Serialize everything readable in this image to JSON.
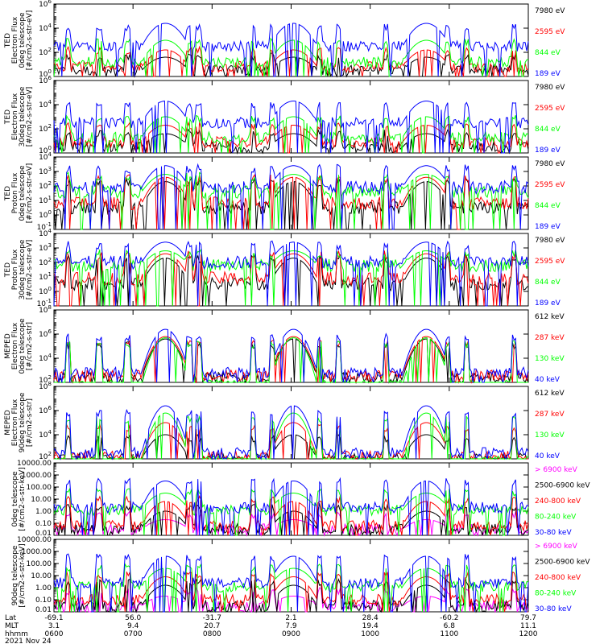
{
  "figure": {
    "date": "2021 Nov 24",
    "footer_labels": [
      "Lat",
      "MLT",
      "hhmm"
    ],
    "footer_columns": [
      {
        "lat": "-69.1",
        "mlt": "3.1",
        "hhmm": "0600"
      },
      {
        "lat": "56.0",
        "mlt": "9.4",
        "hhmm": "0700"
      },
      {
        "lat": "-31.7",
        "mlt": "20.7",
        "hhmm": "0800"
      },
      {
        "lat": "2.1",
        "mlt": "7.9",
        "hhmm": "0900"
      },
      {
        "lat": "28.4",
        "mlt": "19.4",
        "hhmm": "1000"
      },
      {
        "lat": "-60.2",
        "mlt": "6.8",
        "hhmm": "1100"
      },
      {
        "lat": "79.7",
        "mlt": "11.1",
        "hhmm": "1200"
      }
    ]
  },
  "colors": {
    "blue": "#0000ff",
    "red": "#ff0000",
    "green": "#00ff00",
    "black": "#000000",
    "magenta": "#ff00ff"
  },
  "chart_data": [
    {
      "type": "line",
      "ylabel_lines": [
        "TED",
        "Electron Flux",
        "0deg telescope",
        "[#/cm2-s-str-eV]"
      ],
      "yscale": "log",
      "yticks": [
        "10^0",
        "10^2",
        "10^4",
        "10^6"
      ],
      "x_range": [
        "0600",
        "1200"
      ],
      "series": [
        {
          "name": "7980 eV",
          "color": "#000000",
          "baseline": 0.5,
          "peak": 1.6
        },
        {
          "name": "2595 eV",
          "color": "#ff0000",
          "baseline": 0.8,
          "peak": 2.2
        },
        {
          "name": "844 eV",
          "color": "#00ff00",
          "baseline": 1.2,
          "peak": 3.0
        },
        {
          "name": "189 eV",
          "color": "#0000ff",
          "baseline": 2.5,
          "peak": 4.4
        }
      ]
    },
    {
      "type": "line",
      "ylabel_lines": [
        "TED",
        "Electron Flux",
        "30deg telescope",
        "[#/cm2-s-str-eV]"
      ],
      "yscale": "log",
      "yticks": [
        "10^0",
        "10^2",
        "10^4",
        "10^6"
      ],
      "x_range": [
        "0600",
        "1200"
      ],
      "series": [
        {
          "name": "7980 eV",
          "color": "#000000",
          "baseline": 0.5,
          "peak": 1.6
        },
        {
          "name": "2595 eV",
          "color": "#ff0000",
          "baseline": 0.9,
          "peak": 2.3
        },
        {
          "name": "844 eV",
          "color": "#00ff00",
          "baseline": 1.3,
          "peak": 3.0
        },
        {
          "name": "189 eV",
          "color": "#0000ff",
          "baseline": 2.5,
          "peak": 4.3
        }
      ]
    },
    {
      "type": "line",
      "ylabel_lines": [
        "TED",
        "Proton Flux",
        "0deg telescope",
        "[#/cm2-s-str-eV]"
      ],
      "yscale": "log",
      "yticks": [
        "10^-1",
        "10^0",
        "10^1",
        "10^2",
        "10^3",
        "10^4"
      ],
      "x_range": [
        "0600",
        "1200"
      ],
      "series": [
        {
          "name": "7980 eV",
          "color": "#000000",
          "baseline": 0.5,
          "peak": 2.3
        },
        {
          "name": "2595 eV",
          "color": "#ff0000",
          "baseline": 0.8,
          "peak": 2.6
        },
        {
          "name": "844 eV",
          "color": "#00ff00",
          "baseline": 1.6,
          "peak": 2.8
        },
        {
          "name": "189 eV",
          "color": "#0000ff",
          "baseline": 1.9,
          "peak": 3.4
        }
      ]
    },
    {
      "type": "line",
      "ylabel_lines": [
        "TED",
        "Proton Flux",
        "30deg telescope",
        "[#/cm2-s-str-eV]"
      ],
      "yscale": "log",
      "yticks": [
        "10^-1",
        "10^0",
        "10^1",
        "10^2",
        "10^3",
        "10^4"
      ],
      "x_range": [
        "0600",
        "1200"
      ],
      "series": [
        {
          "name": "7980 eV",
          "color": "#000000",
          "baseline": 0.5,
          "peak": 2.3
        },
        {
          "name": "2595 eV",
          "color": "#ff0000",
          "baseline": 0.9,
          "peak": 2.6
        },
        {
          "name": "844 eV",
          "color": "#00ff00",
          "baseline": 1.8,
          "peak": 2.8
        },
        {
          "name": "189 eV",
          "color": "#0000ff",
          "baseline": 2.0,
          "peak": 3.4
        }
      ]
    },
    {
      "type": "line",
      "ylabel_lines": [
        "MEPED",
        "Electron Flux",
        "0deg telescope",
        "[#/cm2-s-str]"
      ],
      "yscale": "log",
      "yticks": [
        "10^2",
        "10^4",
        "10^6",
        "10^8"
      ],
      "x_range": [
        "0600",
        "1200"
      ],
      "series": [
        {
          "name": "612 keV",
          "color": "#000000",
          "baseline": 2.4,
          "peak": 5.6
        },
        {
          "name": "287 keV",
          "color": "#ff0000",
          "baseline": 2.6,
          "peak": 5.8
        },
        {
          "name": "130 keV",
          "color": "#00ff00",
          "baseline": 1.8,
          "peak": 5.7
        },
        {
          "name": "40 keV",
          "color": "#0000ff",
          "baseline": 2.8,
          "peak": 6.4
        }
      ]
    },
    {
      "type": "line",
      "ylabel_lines": [
        "MEPED",
        "Electron Flux",
        "90deg telescope",
        "[#/cm2-s-str]"
      ],
      "yscale": "log",
      "yticks": [
        "10^2",
        "10^4",
        "10^6",
        "10^8"
      ],
      "x_range": [
        "0600",
        "1200"
      ],
      "series": [
        {
          "name": "612 keV",
          "color": "#000000",
          "baseline": 2.0,
          "peak": 4.0
        },
        {
          "name": "287 keV",
          "color": "#ff0000",
          "baseline": 2.2,
          "peak": 5.0
        },
        {
          "name": "130 keV",
          "color": "#00ff00",
          "baseline": 1.8,
          "peak": 5.8
        },
        {
          "name": "40 keV",
          "color": "#0000ff",
          "baseline": 2.5,
          "peak": 6.4
        }
      ]
    },
    {
      "type": "line",
      "ylabel_lines": [
        "0deg telescope",
        "[#/cm2-s-str-keV]"
      ],
      "yscale": "log",
      "yticks": [
        "0.01",
        "0.10",
        "1.00",
        "10.00",
        "100.00",
        "1000.00",
        "10000.00"
      ],
      "x_range": [
        "0600",
        "1200"
      ],
      "series": [
        {
          "name": "> 6900 keV",
          "color": "#ff00ff",
          "baseline": -1.5,
          "peak": -0.7
        },
        {
          "name": "2500-6900 keV",
          "color": "#000000",
          "baseline": -1.5,
          "peak": 0.0
        },
        {
          "name": "240-800 keV",
          "color": "#ff0000",
          "baseline": -1.2,
          "peak": 0.8
        },
        {
          "name": "80-240 keV",
          "color": "#00ff00",
          "baseline": 0.1,
          "peak": 1.5
        },
        {
          "name": "30-80 keV",
          "color": "#0000ff",
          "baseline": 0.3,
          "peak": 2.5
        }
      ]
    },
    {
      "type": "line",
      "ylabel_lines": [
        "90deg telescope",
        "[#/cm2-s-str-keV]"
      ],
      "yscale": "log",
      "yticks": [
        "0.01",
        "0.10",
        "1.00",
        "10.00",
        "100.00",
        "1000.00",
        "10000.00"
      ],
      "x_range": [
        "0600",
        "1200"
      ],
      "series": [
        {
          "name": "> 6900 keV",
          "color": "#ff00ff",
          "baseline": -1.5,
          "peak": -0.7
        },
        {
          "name": "2500-6900 keV",
          "color": "#000000",
          "baseline": -1.5,
          "peak": 0.2
        },
        {
          "name": "240-800 keV",
          "color": "#ff0000",
          "baseline": -1.0,
          "peak": 0.9
        },
        {
          "name": "80-240 keV",
          "color": "#00ff00",
          "baseline": 0.1,
          "peak": 1.6
        },
        {
          "name": "30-80 keV",
          "color": "#0000ff",
          "baseline": 0.4,
          "peak": 2.6
        }
      ]
    }
  ]
}
